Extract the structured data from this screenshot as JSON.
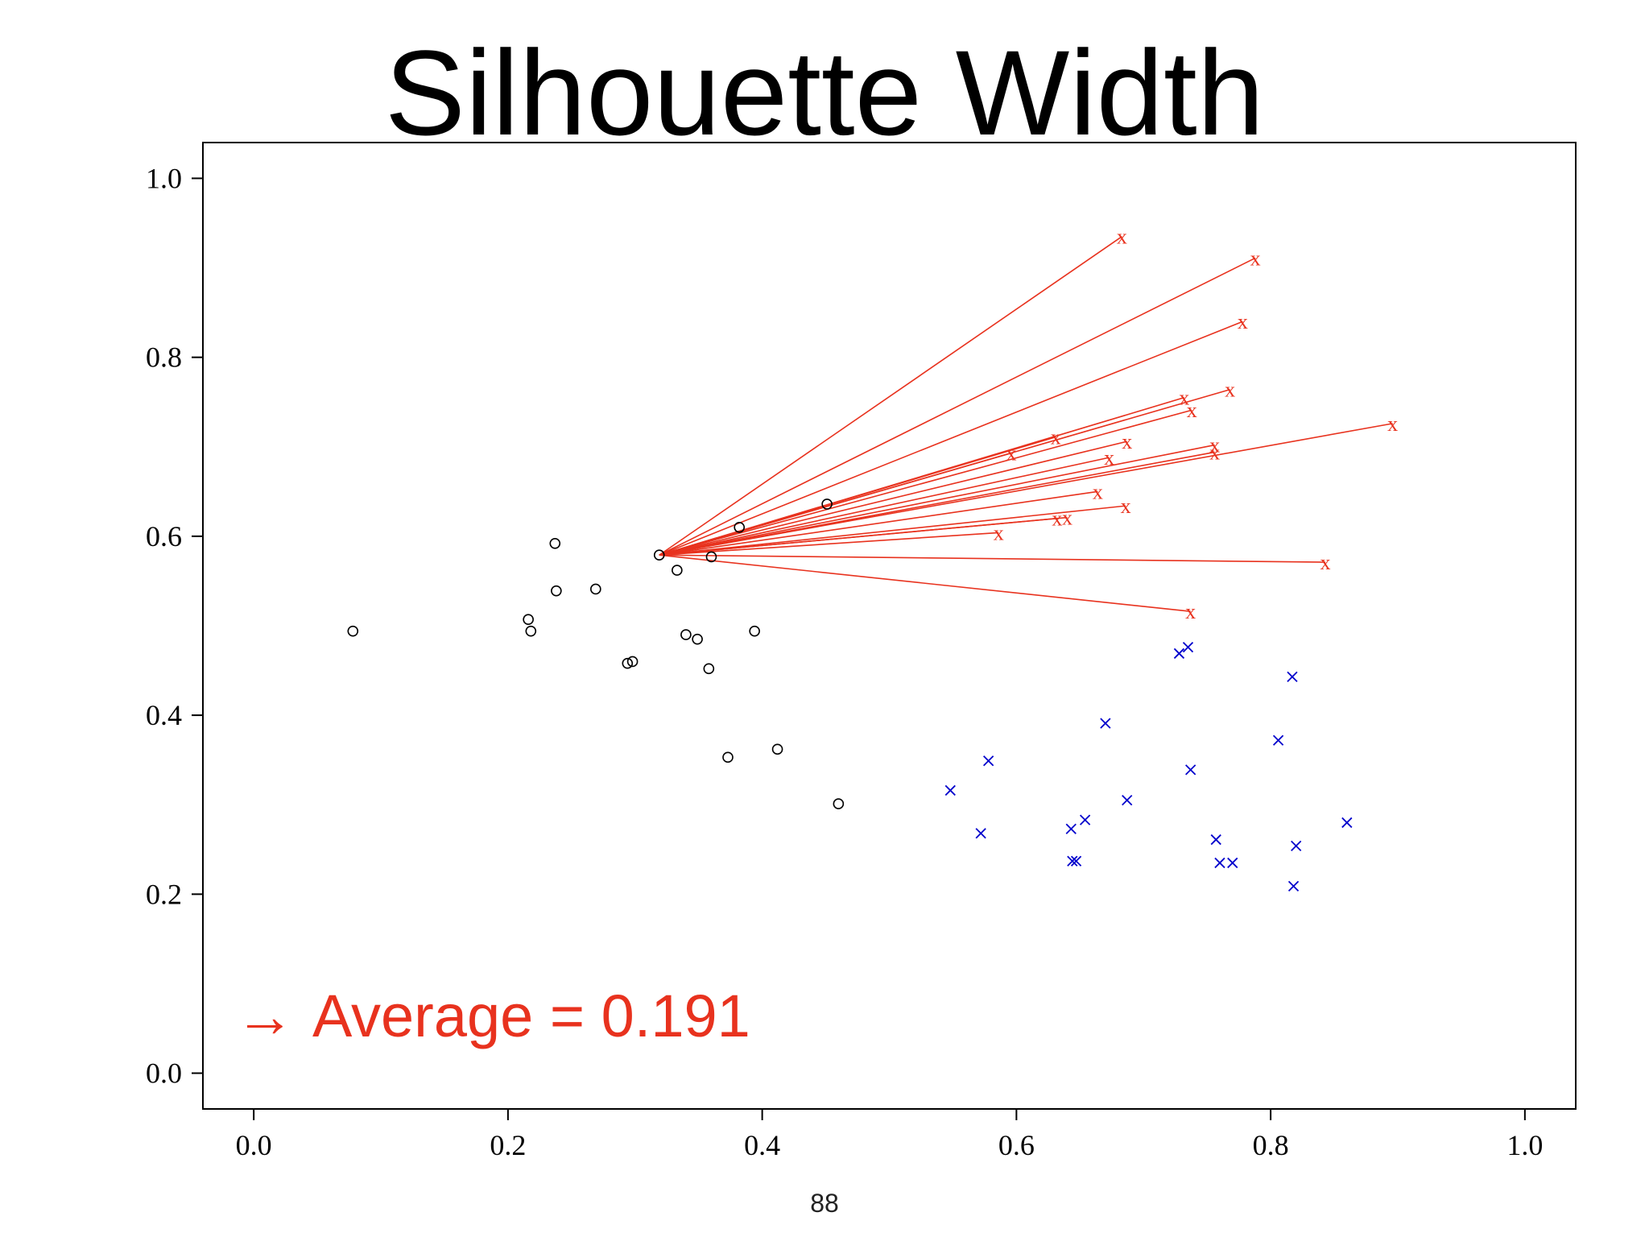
{
  "slide": {
    "title": "Silhouette Width",
    "note_arrow": "→",
    "note_text": "Average = 0.191",
    "page_number": "88"
  },
  "colors": {
    "cluster_a": "#000000",
    "cluster_b": "#0000cc",
    "highlight": "#e8321e"
  },
  "chart_data": {
    "type": "scatter",
    "title": "",
    "xlabel": "",
    "ylabel": "",
    "xlim": [
      -0.04,
      1.04
    ],
    "ylim": [
      -0.04,
      1.04
    ],
    "x_ticks": [
      "0.0",
      "0.2",
      "0.4",
      "0.6",
      "0.8",
      "1.0"
    ],
    "y_ticks": [
      "0.0",
      "0.2",
      "0.4",
      "0.6",
      "0.8",
      "1.0"
    ],
    "grid": false,
    "focal_point": {
      "x": 0.319,
      "y": 0.579
    },
    "series": [
      {
        "marker": "circle",
        "color": "#000000",
        "points": [
          [
            0.078,
            0.494
          ],
          [
            0.216,
            0.507
          ],
          [
            0.218,
            0.494
          ],
          [
            0.237,
            0.592
          ],
          [
            0.238,
            0.539
          ],
          [
            0.269,
            0.541
          ],
          [
            0.294,
            0.458
          ],
          [
            0.298,
            0.46
          ],
          [
            0.319,
            0.579
          ],
          [
            0.333,
            0.562
          ],
          [
            0.34,
            0.49
          ],
          [
            0.349,
            0.485
          ],
          [
            0.358,
            0.452
          ],
          [
            0.36,
            0.577
          ],
          [
            0.373,
            0.353
          ],
          [
            0.382,
            0.61
          ],
          [
            0.394,
            0.494
          ],
          [
            0.412,
            0.362
          ],
          [
            0.451,
            0.636
          ],
          [
            0.46,
            0.301
          ]
        ]
      },
      {
        "marker": "x",
        "color": "#e8321e",
        "points": [
          [
            0.683,
            0.935
          ],
          [
            0.788,
            0.911
          ],
          [
            0.778,
            0.84
          ],
          [
            0.768,
            0.764
          ],
          [
            0.732,
            0.755
          ],
          [
            0.738,
            0.741
          ],
          [
            0.631,
            0.711
          ],
          [
            0.596,
            0.693
          ],
          [
            0.687,
            0.706
          ],
          [
            0.673,
            0.688
          ],
          [
            0.896,
            0.726
          ],
          [
            0.756,
            0.702
          ],
          [
            0.756,
            0.694
          ],
          [
            0.664,
            0.65
          ],
          [
            0.686,
            0.634
          ],
          [
            0.632,
            0.62
          ],
          [
            0.64,
            0.621
          ],
          [
            0.586,
            0.604
          ],
          [
            0.843,
            0.571
          ],
          [
            0.737,
            0.516
          ]
        ]
      },
      {
        "marker": "x",
        "color": "#0000cc",
        "points": [
          [
            0.728,
            0.469
          ],
          [
            0.735,
            0.476
          ],
          [
            0.817,
            0.443
          ],
          [
            0.67,
            0.391
          ],
          [
            0.806,
            0.372
          ],
          [
            0.578,
            0.349
          ],
          [
            0.737,
            0.339
          ],
          [
            0.548,
            0.316
          ],
          [
            0.687,
            0.305
          ],
          [
            0.86,
            0.28
          ],
          [
            0.654,
            0.283
          ],
          [
            0.643,
            0.273
          ],
          [
            0.572,
            0.268
          ],
          [
            0.757,
            0.261
          ],
          [
            0.82,
            0.254
          ],
          [
            0.644,
            0.237
          ],
          [
            0.647,
            0.237
          ],
          [
            0.76,
            0.235
          ],
          [
            0.77,
            0.235
          ],
          [
            0.818,
            0.209
          ]
        ]
      }
    ]
  }
}
